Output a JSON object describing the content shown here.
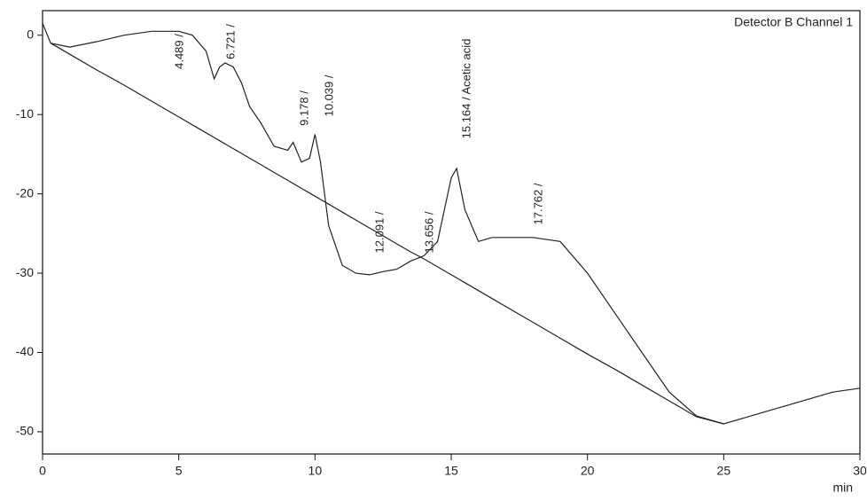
{
  "chart_data": {
    "type": "line",
    "title": "Detector B Channel 1",
    "x_label": "min",
    "x": [
      0,
      0.3,
      1,
      2,
      3,
      4,
      5,
      5.5,
      6,
      6.3,
      6.5,
      6.7,
      7,
      7.3,
      7.6,
      8,
      8.5,
      9,
      9.2,
      9.5,
      9.8,
      10,
      10.2,
      10.5,
      11,
      11.5,
      12,
      12.5,
      13,
      13.5,
      14,
      14.5,
      15,
      15.2,
      15.5,
      16,
      16.5,
      17,
      18,
      19,
      20,
      21,
      22,
      23,
      24,
      25,
      26,
      27,
      28,
      29,
      30
    ],
    "series": [
      {
        "color": "#222222",
        "values": [
          1.5,
          -1,
          -1.5,
          -0.8,
          0,
          0.5,
          0.5,
          0,
          -2,
          -5.5,
          -4,
          -3.5,
          -4,
          -6,
          -9,
          -11,
          -14,
          -14.5,
          -13.5,
          -16,
          -15.5,
          -12.5,
          -16,
          -24,
          -29,
          -30,
          -30.2,
          -29.8,
          -29.5,
          -28.5,
          -27.8,
          -26,
          -18,
          -16.8,
          -22,
          -26,
          -25.5,
          -25.5,
          -25.5,
          -26,
          -30,
          -35,
          -40,
          -45,
          -48,
          -49,
          -48,
          -47,
          -46,
          -45,
          -44.5
        ]
      },
      {
        "color": "#222222",
        "values": [
          null,
          -1,
          -2.4,
          -4.4,
          -6.3,
          -8.3,
          -10.3,
          -11.3,
          -12.3,
          -12.9,
          -13.3,
          -13.7,
          -14.3,
          -14.9,
          -15.5,
          -16.3,
          -17.3,
          -18.3,
          -18.7,
          -19.3,
          -19.9,
          -20.3,
          -20.7,
          -21.3,
          -22.3,
          -23.3,
          -24.3,
          -25.3,
          -26.3,
          -27.3,
          -28.2,
          -29.2,
          -30.2,
          -30.6,
          -31.2,
          -32.2,
          -33.2,
          -34.2,
          -36.2,
          -38.2,
          -40.2,
          -42.1,
          -44.1,
          -46.1,
          -48.1,
          -49,
          null,
          null,
          null,
          null,
          null
        ]
      }
    ],
    "annotations": [
      "4.489 /",
      "6.721 /",
      "9.178 /",
      "10.039 /",
      "12.091 /",
      "13.656 /",
      "15.164 / Acetic acid",
      "17.762 /"
    ],
    "xlim": [
      0,
      30
    ],
    "xticks": [
      0,
      5,
      10,
      15,
      20,
      25,
      30
    ],
    "ylim": [
      -52.8,
      3.1
    ],
    "yticks": [
      0,
      -10,
      -20,
      -30,
      -40,
      -50
    ],
    "grid": false
  }
}
